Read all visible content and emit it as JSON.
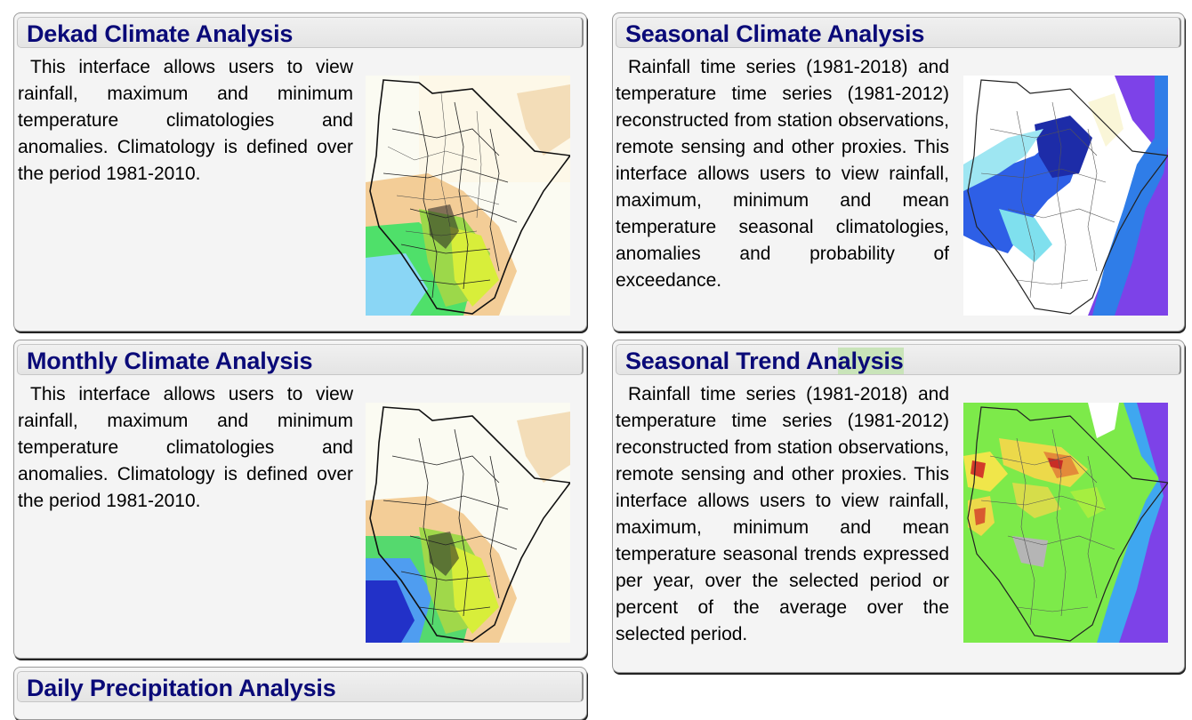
{
  "cards": [
    {
      "title": "Dekad Climate Analysis",
      "description": "This interface allows users to view rainfall, maximum and minimum temperature climatologies and anomalies. Climatology is defined over the period 1981-2010.",
      "map_icon": "dekad-climatology-map"
    },
    {
      "title": "Seasonal Climate Analysis",
      "description": "Rainfall time series (1981-2018) and temperature time series (1981-2012) reconstructed from station observations, remote sensing and other proxies. This interface allows users to view rainfall, maximum, minimum and mean temperature seasonal climatologies, anomalies and probability of exceedance.",
      "map_icon": "seasonal-climatology-map"
    },
    {
      "title": "Monthly Climate Analysis",
      "description": "This interface allows users to view rainfall, maximum and minimum temperature climatologies and anomalies. Climatology is defined over the period 1981-2010.",
      "map_icon": "monthly-climatology-map"
    },
    {
      "title_part1": "Seasonal Trend An",
      "title_part2": "alysis",
      "description": "Rainfall time series (1981-2018) and temperature time series (1981-2012) reconstructed from station observations, remote sensing and other proxies. This interface allows users to view rainfall, maximum, minimum and mean temperature seasonal trends expressed per year, over the selected period or percent of the average over the selected period.",
      "map_icon": "seasonal-trend-map"
    },
    {
      "title": "Daily Precipitation Analysis"
    }
  ],
  "colors": {
    "title": "#0a0a78",
    "card_background": "#f4f4f4",
    "highlight": "#c9e4b9"
  }
}
